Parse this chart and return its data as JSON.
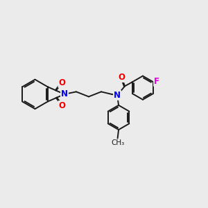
{
  "background_color": "#ebebeb",
  "bond_color": "#1a1a1a",
  "bond_width": 1.4,
  "atom_colors": {
    "N": "#0000ee",
    "O": "#ee0000",
    "F": "#dd00dd"
  },
  "figsize": [
    3.0,
    3.0
  ],
  "dpi": 100,
  "xlim": [
    0,
    10
  ],
  "ylim": [
    0,
    10
  ]
}
